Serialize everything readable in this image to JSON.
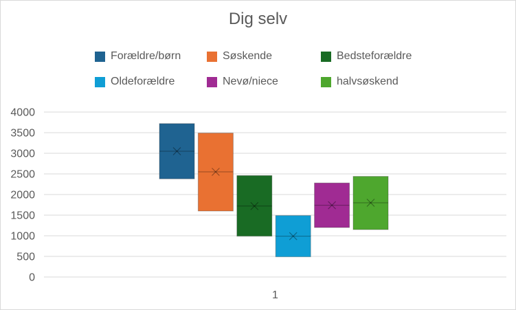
{
  "chart_data": {
    "type": "box",
    "title": "Dig selv",
    "categories": [
      "1"
    ],
    "ylim": [
      0,
      4000
    ],
    "yticks": [
      0,
      500,
      1000,
      1500,
      2000,
      2500,
      3000,
      3500,
      4000
    ],
    "grid": true,
    "legend_position": "top",
    "series": [
      {
        "name": "Forældre/børn",
        "color": "#1f6391",
        "q1": 2380,
        "median": 3050,
        "mean": 3050,
        "q3": 3720
      },
      {
        "name": "Søskende",
        "color": "#e97132",
        "q1": 1600,
        "median": 2550,
        "mean": 2550,
        "q3": 3490
      },
      {
        "name": "Bedsteforældre",
        "color": "#196b24",
        "q1": 990,
        "median": 1720,
        "mean": 1720,
        "q3": 2460
      },
      {
        "name": "Oldeforældre",
        "color": "#0f9ed5",
        "q1": 490,
        "median": 990,
        "mean": 990,
        "q3": 1490
      },
      {
        "name": "Nevø/niece",
        "color": "#a02b93",
        "q1": 1200,
        "median": 1740,
        "mean": 1740,
        "q3": 2280
      },
      {
        "name": "halvsøskend",
        "color": "#4ea72e",
        "q1": 1150,
        "median": 1800,
        "mean": 1800,
        "q3": 2440
      }
    ]
  }
}
